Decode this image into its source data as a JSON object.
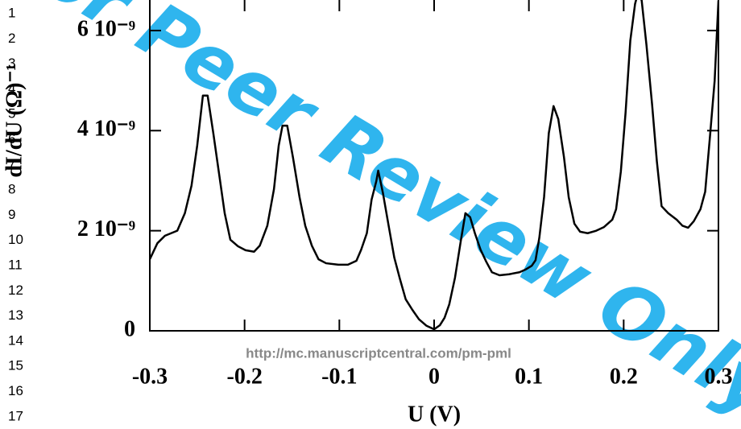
{
  "chart_data": {
    "type": "line",
    "x_label": "U (V)",
    "y_label": "dI/dU (Ω)⁻¹",
    "watermark": "For Peer Review Only",
    "url": "http://mc.manuscriptcentral.com/pm-pml",
    "line_numbers": [
      "1",
      "2",
      "3",
      "4",
      "5",
      "6",
      "7",
      "8",
      "9",
      "10",
      "11",
      "12",
      "13",
      "14",
      "15",
      "16",
      "17"
    ],
    "x": [
      -0.3,
      -0.292,
      -0.284,
      -0.271,
      -0.263,
      -0.256,
      -0.25,
      -0.244,
      -0.239,
      -0.233,
      -0.227,
      -0.221,
      -0.215,
      -0.207,
      -0.199,
      -0.19,
      -0.184,
      -0.176,
      -0.169,
      -0.164,
      -0.16,
      -0.155,
      -0.149,
      -0.142,
      -0.136,
      -0.129,
      -0.122,
      -0.114,
      -0.101,
      -0.091,
      -0.082,
      -0.077,
      -0.071,
      -0.066,
      -0.061,
      -0.059,
      -0.054,
      -0.048,
      -0.042,
      -0.036,
      -0.03,
      -0.023,
      -0.016,
      -0.008,
      0,
      0.006,
      0.011,
      0.016,
      0.022,
      0.028,
      0.033,
      0.038,
      0.043,
      0.049,
      0.055,
      0.061,
      0.069,
      0.079,
      0.09,
      0.096,
      0.103,
      0.107,
      0.111,
      0.116,
      0.121,
      0.126,
      0.131,
      0.137,
      0.142,
      0.148,
      0.154,
      0.162,
      0.171,
      0.179,
      0.188,
      0.192,
      0.197,
      0.202,
      0.207,
      0.212,
      0.215,
      0.219,
      0.224,
      0.23,
      0.235,
      0.24,
      0.247,
      0.256,
      0.262,
      0.268,
      0.274,
      0.281,
      0.286,
      0.291,
      0.296,
      0.3
    ],
    "series": [
      {
        "color": "#000000",
        "values": [
          1.43e-09,
          1.75e-09,
          1.9e-09,
          2e-09,
          2.35e-09,
          2.9e-09,
          3.7e-09,
          4.7e-09,
          4.7e-09,
          3.95e-09,
          3.15e-09,
          2.35e-09,
          1.82e-09,
          1.69e-09,
          1.61e-09,
          1.58e-09,
          1.7e-09,
          2.1e-09,
          2.83e-09,
          3.7e-09,
          4.1e-09,
          4.1e-09,
          3.47e-09,
          2.67e-09,
          2.1e-09,
          1.7e-09,
          1.43e-09,
          1.35e-09,
          1.32e-09,
          1.32e-09,
          1.4e-09,
          1.62e-09,
          1.95e-09,
          2.62e-09,
          2.99e-09,
          3.2e-09,
          2.75e-09,
          2.1e-09,
          1.46e-09,
          1.03e-09,
          6.3e-10,
          4.2e-10,
          2.3e-10,
          1e-10,
          3e-11,
          1.1e-10,
          2.6e-10,
          5.3e-10,
          1.06e-09,
          1.78e-09,
          2.35e-09,
          2.27e-09,
          1.95e-09,
          1.62e-09,
          1.38e-09,
          1.17e-09,
          1.11e-09,
          1.13e-09,
          1.17e-09,
          1.22e-09,
          1.3e-09,
          1.41e-09,
          1.86e-09,
          2.67e-09,
          3.95e-09,
          4.49e-09,
          4.23e-09,
          3.47e-09,
          2.67e-09,
          2.14e-09,
          1.98e-09,
          1.95e-09,
          2e-09,
          2.07e-09,
          2.22e-09,
          2.43e-09,
          3.18e-09,
          4.36e-09,
          5.8e-09,
          6.53e-09,
          6.75e-09,
          6.6e-09,
          5.72e-09,
          4.52e-09,
          3.39e-09,
          2.49e-09,
          2.35e-09,
          2.22e-09,
          2.1e-09,
          2.06e-09,
          2.19e-09,
          2.43e-09,
          2.78e-09,
          3.87e-09,
          5e-09,
          6.6e-09
        ]
      }
    ],
    "xlim": [
      -0.3,
      0.3
    ],
    "xticks": [
      -0.3,
      -0.2,
      -0.1,
      0,
      0.1,
      0.2,
      0.3
    ],
    "ylim": [
      0,
      6.61e-09
    ],
    "yticks": [
      0,
      {
        "value": 2e-09,
        "label": "2 10⁻⁹"
      },
      {
        "value": 4e-09,
        "label": "4 10⁻⁹"
      },
      {
        "value": 6e-09,
        "label": "6 10⁻⁹"
      }
    ]
  }
}
